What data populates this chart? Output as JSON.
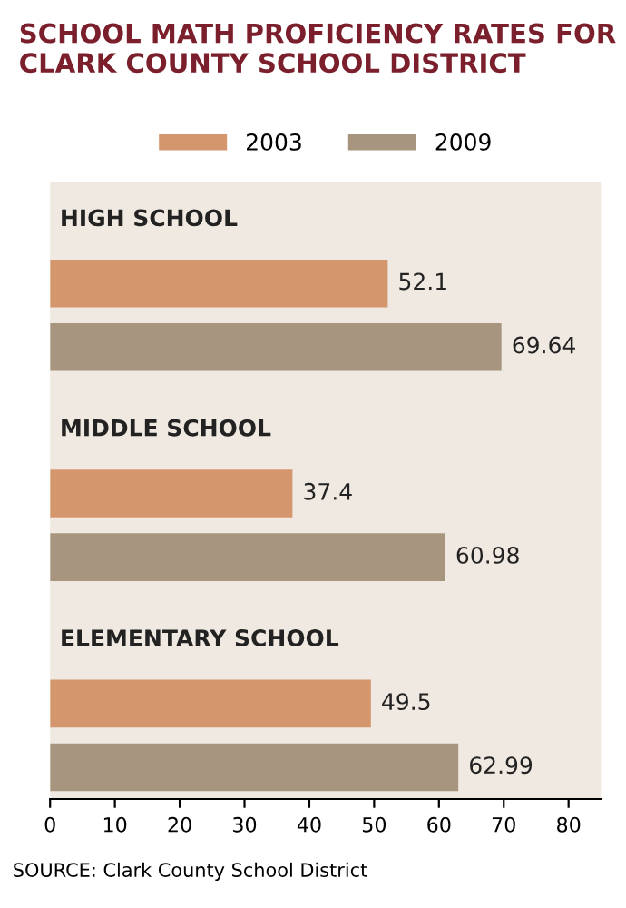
{
  "chart_data": {
    "type": "bar",
    "orientation": "horizontal",
    "title": "SCHOOL MATH PROFICIENCY RATES FOR CLARK COUNTY SCHOOL DISTRICT",
    "categories": [
      "HIGH SCHOOL",
      "MIDDLE SCHOOL",
      "ELEMENTARY SCHOOL"
    ],
    "series": [
      {
        "name": "2003",
        "color": "#d4966c",
        "values": [
          52.1,
          37.4,
          49.5
        ]
      },
      {
        "name": "2009",
        "color": "#a8957f",
        "values": [
          69.64,
          60.98,
          62.99
        ]
      }
    ],
    "xlim": [
      0,
      85
    ],
    "xticks": [
      0,
      10,
      20,
      30,
      40,
      50,
      60,
      70,
      80
    ],
    "data_labels": true,
    "legend": "top",
    "grid": false,
    "annotations": [
      "SOURCE: Clark County School District"
    ]
  }
}
